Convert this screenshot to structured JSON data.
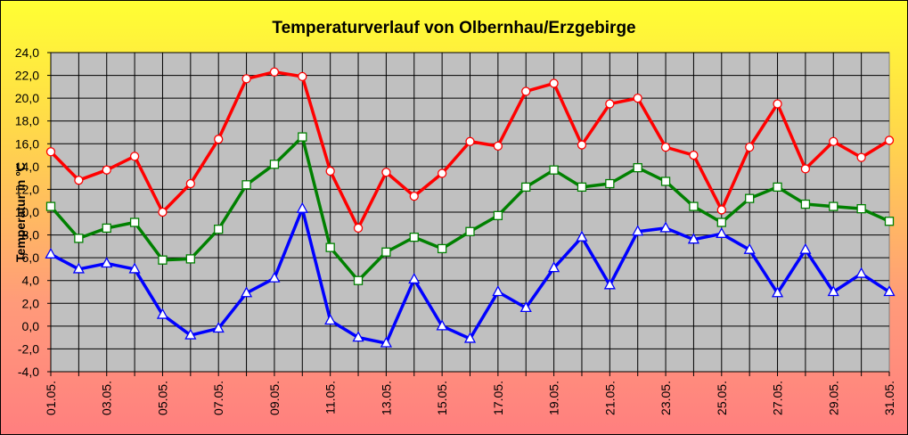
{
  "chart_data": {
    "type": "line",
    "title": "Temperaturverlauf von Olbernhau/Erzgebirge",
    "ylabel": "Temperatur in °C",
    "xlabel": "",
    "ylim": [
      -4,
      24
    ],
    "ytick_step": 2,
    "ytick_labels": [
      "-4,0",
      "-2,0",
      "0,0",
      "2,0",
      "4,0",
      "6,0",
      "8,0",
      "10,0",
      "12,0",
      "14,0",
      "16,0",
      "18,0",
      "20,0",
      "22,0",
      "24,0"
    ],
    "categories": [
      "01.05.",
      "02.05.",
      "03.05.",
      "04.05.",
      "05.05.",
      "06.05.",
      "07.05.",
      "08.05.",
      "09.05.",
      "10.05.",
      "11.05.",
      "12.05.",
      "13.05.",
      "14.05.",
      "15.05.",
      "16.05.",
      "17.05.",
      "18.05.",
      "19.05.",
      "20.05.",
      "21.05.",
      "22.05.",
      "23.05.",
      "24.05.",
      "25.05.",
      "26.05.",
      "27.05.",
      "28.05.",
      "29.05.",
      "30.05.",
      "31.05."
    ],
    "shown_tick_labels": [
      "01.05.",
      "03.05.",
      "05.05.",
      "07.05.",
      "09.05.",
      "11.05.",
      "13.05.",
      "15.05.",
      "17.05.",
      "19.05.",
      "21.05.",
      "23.05.",
      "25.05.",
      "27.05.",
      "29.05.",
      "31.05."
    ],
    "grid": true,
    "plot_background": "#c0c0c0",
    "series": [
      {
        "color": "#ff0000",
        "marker": "circle",
        "values": [
          15.3,
          12.8,
          13.7,
          14.9,
          10.0,
          12.5,
          16.4,
          21.7,
          22.3,
          21.9,
          13.6,
          8.6,
          13.5,
          11.4,
          13.4,
          16.2,
          15.8,
          20.6,
          21.3,
          15.9,
          19.5,
          20.0,
          15.7,
          15.0,
          10.2,
          15.7,
          19.5,
          13.8,
          16.2,
          14.8,
          16.3
        ]
      },
      {
        "color": "#008000",
        "marker": "square",
        "values": [
          10.5,
          7.7,
          8.6,
          9.1,
          5.8,
          5.9,
          8.5,
          12.4,
          14.2,
          16.6,
          6.9,
          4.0,
          6.5,
          7.8,
          6.8,
          8.3,
          9.7,
          12.2,
          13.7,
          12.2,
          12.5,
          13.9,
          12.7,
          10.5,
          9.1,
          11.2,
          12.2,
          10.7,
          10.5,
          10.3,
          9.2
        ]
      },
      {
        "color": "#0000ff",
        "marker": "triangle",
        "values": [
          6.3,
          5.0,
          5.5,
          5.0,
          1.0,
          -0.8,
          -0.2,
          2.9,
          4.2,
          10.3,
          0.5,
          -1.0,
          -1.5,
          4.1,
          0.0,
          -1.1,
          3.0,
          1.6,
          5.1,
          7.8,
          3.6,
          8.3,
          8.6,
          7.6,
          8.1,
          6.7,
          2.9,
          6.7,
          3.0,
          4.6,
          3.0
        ]
      }
    ]
  }
}
